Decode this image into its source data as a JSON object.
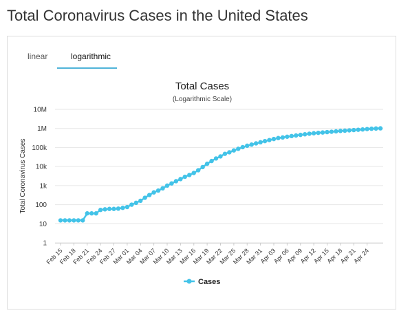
{
  "page": {
    "title": "Total Coronavirus Cases in the United States"
  },
  "tabs": [
    {
      "label": "linear",
      "active": false
    },
    {
      "label": "logarithmic",
      "active": true
    }
  ],
  "colors": {
    "series": "#43c3e8",
    "tab_underline": "#4fb3d9",
    "grid": "#e6e6e6"
  },
  "chart_data": {
    "type": "line",
    "title": "Total Cases",
    "subtitle": "(Logarithmic Scale)",
    "ylabel": "Total Coronavirus Cases",
    "xlabel": "",
    "yscale": "log",
    "ylim": [
      1,
      10000000
    ],
    "ytick_labels": [
      "1",
      "10",
      "100",
      "1k",
      "10k",
      "100k",
      "1M",
      "10M"
    ],
    "ytick_values": [
      1,
      10,
      100,
      1000,
      10000,
      100000,
      1000000,
      10000000
    ],
    "xtick_labels": [
      "Feb 15",
      "Feb 18",
      "Feb 21",
      "Feb 24",
      "Feb 27",
      "Mar 01",
      "Mar 04",
      "Mar 07",
      "Mar 10",
      "Mar 13",
      "Mar 16",
      "Mar 19",
      "Mar 22",
      "Mar 25",
      "Mar 28",
      "Mar 31",
      "Apr 03",
      "Apr 06",
      "Apr 09",
      "Apr 12",
      "Apr 15",
      "Apr 18",
      "Apr 21",
      "Apr 24"
    ],
    "legend": {
      "position": "bottom-center"
    },
    "grid": true,
    "series": [
      {
        "name": "Cases",
        "x": [
          "Feb 15",
          "Feb 16",
          "Feb 17",
          "Feb 18",
          "Feb 19",
          "Feb 20",
          "Feb 21",
          "Feb 22",
          "Feb 23",
          "Feb 24",
          "Feb 25",
          "Feb 26",
          "Feb 27",
          "Feb 28",
          "Feb 29",
          "Mar 01",
          "Mar 02",
          "Mar 03",
          "Mar 04",
          "Mar 05",
          "Mar 06",
          "Mar 07",
          "Mar 08",
          "Mar 09",
          "Mar 10",
          "Mar 11",
          "Mar 12",
          "Mar 13",
          "Mar 14",
          "Mar 15",
          "Mar 16",
          "Mar 17",
          "Mar 18",
          "Mar 19",
          "Mar 20",
          "Mar 21",
          "Mar 22",
          "Mar 23",
          "Mar 24",
          "Mar 25",
          "Mar 26",
          "Mar 27",
          "Mar 28",
          "Mar 29",
          "Mar 30",
          "Mar 31",
          "Apr 01",
          "Apr 02",
          "Apr 03",
          "Apr 04",
          "Apr 05",
          "Apr 06",
          "Apr 07",
          "Apr 08",
          "Apr 09",
          "Apr 10",
          "Apr 11",
          "Apr 12",
          "Apr 13",
          "Apr 14",
          "Apr 15",
          "Apr 16",
          "Apr 17",
          "Apr 18",
          "Apr 19",
          "Apr 20",
          "Apr 21",
          "Apr 22",
          "Apr 23",
          "Apr 24",
          "Apr 25",
          "Apr 26",
          "Apr 27"
        ],
        "values": [
          15,
          15,
          15,
          15,
          15,
          15,
          35,
          35,
          35,
          53,
          57,
          60,
          60,
          62,
          68,
          75,
          100,
          125,
          160,
          230,
          320,
          440,
          550,
          720,
          1000,
          1300,
          1700,
          2200,
          2900,
          3600,
          4600,
          6400,
          9400,
          14000,
          19500,
          26500,
          34000,
          46500,
          56000,
          70000,
          85000,
          104000,
          124000,
          142000,
          164000,
          188000,
          216000,
          245000,
          278000,
          312000,
          337000,
          367000,
          397000,
          427000,
          458000,
          492000,
          528000,
          558000,
          585000,
          612000,
          641000,
          671000,
          703000,
          737000,
          764000,
          792000,
          821000,
          851000,
          884000,
          926000,
          961000,
          987000,
          1010000
        ]
      }
    ]
  }
}
